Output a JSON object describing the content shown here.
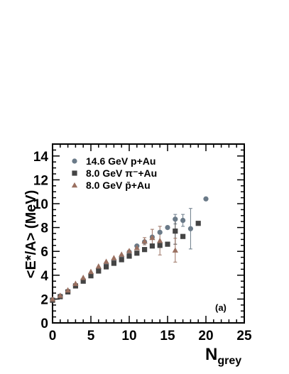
{
  "chart_data": {
    "type": "scatter",
    "xlabel": "N",
    "xlabel_sub": "grey",
    "ylabel": "<E*/A> (MeV)",
    "xlim": [
      0,
      25
    ],
    "ylim": [
      0,
      15
    ],
    "xticks": [
      "0",
      "5",
      "10",
      "15",
      "20",
      "25"
    ],
    "yticks": [
      "0",
      "2",
      "4",
      "6",
      "8",
      "10",
      "12",
      "14"
    ],
    "panel_label": "(a)",
    "legend_position": "top-left",
    "series": [
      {
        "name": "14.6 GeV p+Au",
        "marker": "circle",
        "color": "#6a7a88",
        "points": [
          {
            "x": 0,
            "y": 1.95
          },
          {
            "x": 1,
            "y": 2.25
          },
          {
            "x": 2,
            "y": 2.65
          },
          {
            "x": 3,
            "y": 3.15
          },
          {
            "x": 4,
            "y": 3.6
          },
          {
            "x": 5,
            "y": 4.05
          },
          {
            "x": 6,
            "y": 4.5
          },
          {
            "x": 7,
            "y": 4.9
          },
          {
            "x": 8,
            "y": 5.2
          },
          {
            "x": 9,
            "y": 5.55
          },
          {
            "x": 10,
            "y": 5.95
          },
          {
            "x": 11,
            "y": 6.45
          },
          {
            "x": 12,
            "y": 6.8
          },
          {
            "x": 13,
            "y": 7.2
          },
          {
            "x": 14,
            "y": 7.6
          },
          {
            "x": 15,
            "y": 8.0
          },
          {
            "x": 16,
            "y": 8.7,
            "err": 0.4
          },
          {
            "x": 17,
            "y": 8.6,
            "err": 0.5
          },
          {
            "x": 18,
            "y": 7.9,
            "err": 1.7
          },
          {
            "x": 20,
            "y": 10.4
          }
        ]
      },
      {
        "name": "8.0 GeV π⁻+Au",
        "marker": "square",
        "color": "#444444",
        "points": [
          {
            "x": 0,
            "y": 1.9
          },
          {
            "x": 1,
            "y": 2.2
          },
          {
            "x": 2,
            "y": 2.6
          },
          {
            "x": 3,
            "y": 3.1
          },
          {
            "x": 4,
            "y": 3.5
          },
          {
            "x": 5,
            "y": 3.95
          },
          {
            "x": 6,
            "y": 4.35
          },
          {
            "x": 7,
            "y": 4.7
          },
          {
            "x": 8,
            "y": 5.0
          },
          {
            "x": 9,
            "y": 5.3
          },
          {
            "x": 10,
            "y": 5.6
          },
          {
            "x": 11,
            "y": 5.85
          },
          {
            "x": 12,
            "y": 6.15
          },
          {
            "x": 13,
            "y": 6.45
          },
          {
            "x": 14,
            "y": 6.5
          },
          {
            "x": 15,
            "y": 6.6
          },
          {
            "x": 16,
            "y": 7.7,
            "err": 1.1
          },
          {
            "x": 17,
            "y": 7.25
          },
          {
            "x": 19,
            "y": 8.35
          }
        ]
      },
      {
        "name": "8.0 GeV p̄+Au",
        "marker": "triangle",
        "color": "#9a7060",
        "points": [
          {
            "x": 0,
            "y": 2.0
          },
          {
            "x": 1,
            "y": 2.3
          },
          {
            "x": 2,
            "y": 2.75
          },
          {
            "x": 3,
            "y": 3.3
          },
          {
            "x": 4,
            "y": 3.8
          },
          {
            "x": 5,
            "y": 4.3
          },
          {
            "x": 6,
            "y": 4.75
          },
          {
            "x": 7,
            "y": 5.15
          },
          {
            "x": 8,
            "y": 5.45
          },
          {
            "x": 9,
            "y": 5.75
          },
          {
            "x": 10,
            "y": 6.05
          },
          {
            "x": 11,
            "y": 6.3
          },
          {
            "x": 12,
            "y": 6.85,
            "err": 0.3
          },
          {
            "x": 13,
            "y": 7.15,
            "err": 0.7
          },
          {
            "x": 14,
            "y": 6.9,
            "err": 1.2
          },
          {
            "x": 16,
            "y": 6.1,
            "err": 1.0
          }
        ]
      }
    ]
  }
}
